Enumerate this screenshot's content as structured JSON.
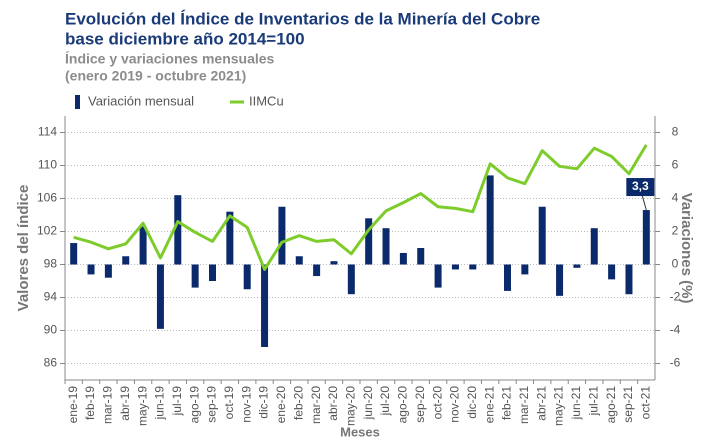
{
  "chart_data": {
    "type": "bar-line",
    "title": [
      "Evolución del Índice de Inventarios de la Minería del Cobre",
      "base diciembre año 2014=100"
    ],
    "subtitle": [
      "Índice y variaciones mensuales",
      "(enero 2019 - octubre 2021)"
    ],
    "x_label": "Meses",
    "y_label": "Valores del índice",
    "y2_label": "Variaciones (%)",
    "categories": [
      "ene-19",
      "feb-19",
      "mar-19",
      "abr-19",
      "may-19",
      "jun-19",
      "jul-19",
      "ago-19",
      "sep-19",
      "oct-19",
      "nov-19",
      "dic-19",
      "ene-20",
      "feb-20",
      "mar-20",
      "abr-20",
      "may-20",
      "jun-20",
      "jul-20",
      "ago-20",
      "sep-20",
      "oct-20",
      "nov-20",
      "dic-20",
      "ene-21",
      "feb-21",
      "mar-21",
      "abr-21",
      "may-21",
      "jun-21",
      "jul-21",
      "ago-21",
      "sep-21",
      "oct-21"
    ],
    "series": [
      {
        "name": "Variación mensual",
        "type": "bar",
        "axis": "y2",
        "color": "#0b2a6b",
        "values": [
          1.3,
          -0.6,
          -0.8,
          0.5,
          2.3,
          -3.9,
          4.2,
          -1.4,
          -1.0,
          3.2,
          -1.5,
          -5.0,
          3.5,
          0.5,
          -0.7,
          0.2,
          -1.8,
          2.8,
          2.2,
          0.7,
          1.0,
          -1.4,
          -0.3,
          -0.3,
          5.4,
          -1.6,
          -0.6,
          3.5,
          -1.9,
          -0.2,
          2.2,
          -0.9,
          -1.8,
          3.3
        ],
        "value_labels": [
          null,
          null,
          null,
          null,
          null,
          null,
          null,
          null,
          null,
          null,
          null,
          null,
          null,
          null,
          null,
          null,
          null,
          null,
          null,
          null,
          null,
          null,
          null,
          null,
          null,
          null,
          null,
          null,
          null,
          null,
          null,
          null,
          null,
          "3,3"
        ]
      },
      {
        "name": "IIMCu",
        "type": "line",
        "color": "#7dcc2b",
        "values": [
          101.3,
          100.7,
          99.9,
          100.5,
          103.0,
          98.8,
          103.2,
          101.9,
          100.8,
          103.9,
          102.5,
          97.4,
          100.7,
          101.5,
          100.8,
          101.0,
          99.3,
          102.2,
          104.5,
          105.5,
          106.6,
          105.0,
          104.8,
          104.4,
          110.2,
          108.5,
          107.8,
          111.8,
          109.9,
          109.6,
          112.1,
          111.1,
          109.0,
          112.5
        ]
      }
    ],
    "ylim": [
      84,
      116
    ],
    "yticks": [
      86,
      90,
      94,
      98,
      102,
      106,
      110,
      114
    ],
    "y2lim": [
      -7,
      9
    ],
    "y2ticks": [
      -6,
      -4,
      -2,
      0,
      2,
      4,
      6,
      8
    ],
    "grid": true
  }
}
